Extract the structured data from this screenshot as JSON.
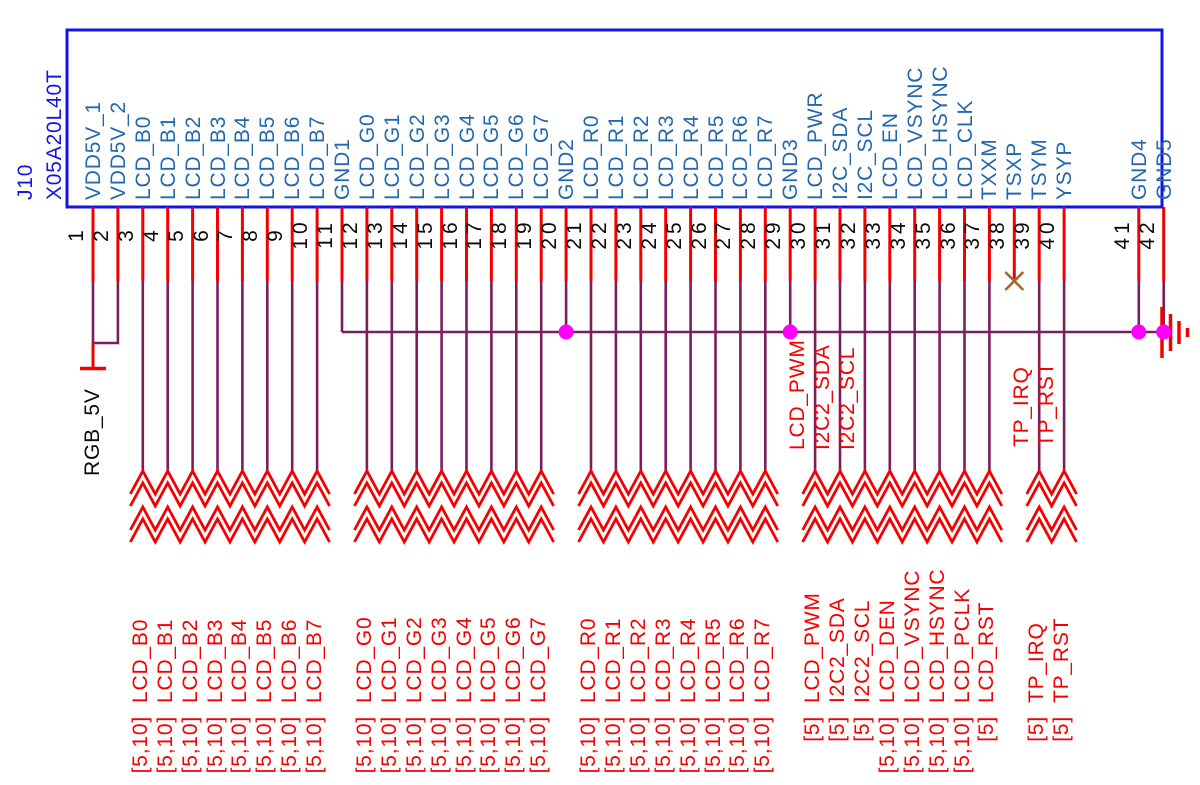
{
  "connector": {
    "refdes": "J10",
    "part_number": "X05A20L40T",
    "power_net_label": "RGB_5V",
    "pins": [
      {
        "num": 1,
        "name": "VDD5V_1"
      },
      {
        "num": 2,
        "name": "VDD5V_2"
      },
      {
        "num": 3,
        "name": "LCD_B0"
      },
      {
        "num": 4,
        "name": "LCD_B1"
      },
      {
        "num": 5,
        "name": "LCD_B2"
      },
      {
        "num": 6,
        "name": "LCD_B3"
      },
      {
        "num": 7,
        "name": "LCD_B4"
      },
      {
        "num": 8,
        "name": "LCD_B5"
      },
      {
        "num": 9,
        "name": "LCD_B6"
      },
      {
        "num": 10,
        "name": "LCD_B7"
      },
      {
        "num": 11,
        "name": "GND1"
      },
      {
        "num": 12,
        "name": "LCD_G0"
      },
      {
        "num": 13,
        "name": "LCD_G1"
      },
      {
        "num": 14,
        "name": "LCD_G2"
      },
      {
        "num": 15,
        "name": "LCD_G3"
      },
      {
        "num": 16,
        "name": "LCD_G4"
      },
      {
        "num": 17,
        "name": "LCD_G5"
      },
      {
        "num": 18,
        "name": "LCD_G6"
      },
      {
        "num": 19,
        "name": "LCD_G7"
      },
      {
        "num": 20,
        "name": "GND2"
      },
      {
        "num": 21,
        "name": "LCD_R0"
      },
      {
        "num": 22,
        "name": "LCD_R1"
      },
      {
        "num": 23,
        "name": "LCD_R2"
      },
      {
        "num": 24,
        "name": "LCD_R3"
      },
      {
        "num": 25,
        "name": "LCD_R4"
      },
      {
        "num": 26,
        "name": "LCD_R5"
      },
      {
        "num": 27,
        "name": "LCD_R6"
      },
      {
        "num": 28,
        "name": "LCD_R7"
      },
      {
        "num": 29,
        "name": "GND3"
      },
      {
        "num": 30,
        "name": "LCD_PWR"
      },
      {
        "num": 31,
        "name": "I2C_SDA"
      },
      {
        "num": 32,
        "name": "I2C_SCL"
      },
      {
        "num": 33,
        "name": "LCD_EN"
      },
      {
        "num": 34,
        "name": "LCD_VSYNC"
      },
      {
        "num": 35,
        "name": "LCD_HSYNC"
      },
      {
        "num": 36,
        "name": "LCD_CLK"
      },
      {
        "num": 37,
        "name": "TXXM"
      },
      {
        "num": 38,
        "name": "TSXP"
      },
      {
        "num": 39,
        "name": "TSYM"
      },
      {
        "num": 40,
        "name": "YSYP"
      },
      {
        "num": 41,
        "name": "GND4"
      },
      {
        "num": 42,
        "name": "GND5"
      }
    ],
    "no_connect_pins": [
      38
    ],
    "power_pins": [
      1,
      2
    ],
    "gnd_bus_entry_pin": 11,
    "gnd_junction_pins": [
      20,
      29,
      41,
      42
    ]
  },
  "wire_groups": [
    {
      "pins": [
        3,
        4,
        5,
        6,
        7,
        8,
        9,
        10
      ]
    },
    {
      "pins": [
        12,
        13,
        14,
        15,
        16,
        17,
        18,
        19
      ]
    },
    {
      "pins": [
        21,
        22,
        23,
        24,
        25,
        26,
        27,
        28
      ]
    },
    {
      "pins": [
        30,
        31,
        32,
        33,
        34,
        35,
        36,
        37
      ]
    },
    {
      "pins": [
        39,
        40
      ]
    }
  ],
  "net_labels_mid": [
    {
      "pin": 30,
      "text": "LCD_PWM"
    },
    {
      "pin": 31,
      "text": "I2C2_SDA"
    },
    {
      "pin": 32,
      "text": "I2C2_SCL"
    },
    {
      "pin": 39,
      "text": "TP_IRQ"
    },
    {
      "pin": 40,
      "text": "TP_RST"
    }
  ],
  "net_labels_bottom": [
    {
      "pin": 3,
      "tag": "[5,10]",
      "net": "LCD_B0"
    },
    {
      "pin": 4,
      "tag": "[5,10]",
      "net": "LCD_B1"
    },
    {
      "pin": 5,
      "tag": "[5,10]",
      "net": "LCD_B2"
    },
    {
      "pin": 6,
      "tag": "[5,10]",
      "net": "LCD_B3"
    },
    {
      "pin": 7,
      "tag": "[5,10]",
      "net": "LCD_B4"
    },
    {
      "pin": 8,
      "tag": "[5,10]",
      "net": "LCD_B5"
    },
    {
      "pin": 9,
      "tag": "[5,10]",
      "net": "LCD_B6"
    },
    {
      "pin": 10,
      "tag": "[5,10]",
      "net": "LCD_B7"
    },
    {
      "pin": 12,
      "tag": "[5,10]",
      "net": "LCD_G0"
    },
    {
      "pin": 13,
      "tag": "[5,10]",
      "net": "LCD_G1"
    },
    {
      "pin": 14,
      "tag": "[5,10]",
      "net": "LCD_G2"
    },
    {
      "pin": 15,
      "tag": "[5,10]",
      "net": "LCD_G3"
    },
    {
      "pin": 16,
      "tag": "[5,10]",
      "net": "LCD_G4"
    },
    {
      "pin": 17,
      "tag": "[5,10]",
      "net": "LCD_G5"
    },
    {
      "pin": 18,
      "tag": "[5,10]",
      "net": "LCD_G6"
    },
    {
      "pin": 19,
      "tag": "[5,10]",
      "net": "LCD_G7"
    },
    {
      "pin": 21,
      "tag": "[5,10]",
      "net": "LCD_R0"
    },
    {
      "pin": 22,
      "tag": "[5,10]",
      "net": "LCD_R1"
    },
    {
      "pin": 23,
      "tag": "[5,10]",
      "net": "LCD_R2"
    },
    {
      "pin": 24,
      "tag": "[5,10]",
      "net": "LCD_R3"
    },
    {
      "pin": 25,
      "tag": "[5,10]",
      "net": "LCD_R4"
    },
    {
      "pin": 26,
      "tag": "[5,10]",
      "net": "LCD_R5"
    },
    {
      "pin": 27,
      "tag": "[5,10]",
      "net": "LCD_R6"
    },
    {
      "pin": 28,
      "tag": "[5,10]",
      "net": "LCD_R7"
    },
    {
      "pin": 30,
      "tag": "[5]",
      "net": "LCD_PWM"
    },
    {
      "pin": 31,
      "tag": "[5]",
      "net": "I2C2_SDA"
    },
    {
      "pin": 32,
      "tag": "[5]",
      "net": "I2C2_SCL"
    },
    {
      "pin": 33,
      "tag": "[5,10]",
      "net": "LCD_DEN"
    },
    {
      "pin": 34,
      "tag": "[5,10]",
      "net": "LCD_VSYNC"
    },
    {
      "pin": 35,
      "tag": "[5,10]",
      "net": "LCD_HSYNC"
    },
    {
      "pin": 36,
      "tag": "[5,10]",
      "net": "LCD_PCLK"
    },
    {
      "pin": 37,
      "tag": "[5]",
      "net": "LCD_RST"
    },
    {
      "pin": 39,
      "tag": "[5]",
      "net": "TP_IRQ"
    },
    {
      "pin": 40,
      "tag": "[5]",
      "net": "TP_RST"
    }
  ],
  "colors": {
    "box_blue": "#1414e8",
    "pin_name_blue": "#2368ae",
    "stub_red": "#f50000",
    "wire_purple": "#7a1f5c",
    "junction_magenta": "#ff00ff",
    "no_connect_brown": "#9c6b33",
    "text_black": "#0a0a0a"
  }
}
